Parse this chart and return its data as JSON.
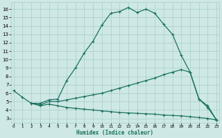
{
  "xlabel": "Humidex (Indice chaleur)",
  "background_color": "#cde8e5",
  "grid_color": "#a8cdc9",
  "line_color": "#1a7060",
  "x_ticks": [
    0,
    1,
    2,
    3,
    4,
    5,
    6,
    7,
    8,
    9,
    10,
    11,
    12,
    13,
    14,
    15,
    16,
    17,
    18,
    19,
    20,
    21,
    22,
    23
  ],
  "y_ticks": [
    3,
    4,
    5,
    6,
    7,
    8,
    9,
    10,
    11,
    12,
    13,
    14,
    15,
    16
  ],
  "xlim": [
    -0.3,
    23.3
  ],
  "ylim": [
    2.5,
    16.8
  ],
  "line1_x": [
    0,
    1,
    2,
    3,
    4,
    5,
    6,
    7,
    8,
    9,
    10,
    11,
    12,
    13,
    14,
    15,
    16,
    17,
    18,
    19,
    20,
    21,
    22,
    23
  ],
  "line1_y": [
    6.3,
    5.5,
    4.8,
    4.8,
    5.2,
    5.3,
    7.5,
    9.0,
    10.8,
    12.2,
    14.1,
    15.5,
    15.7,
    16.2,
    15.6,
    16.0,
    15.5,
    14.2,
    13.0,
    10.5,
    8.5,
    5.3,
    4.3,
    2.8
  ],
  "line2_x": [
    2,
    3,
    4,
    5,
    6,
    7,
    8,
    9,
    10,
    11,
    12,
    13,
    14,
    15,
    16,
    17,
    18,
    19,
    20,
    21,
    22,
    23
  ],
  "line2_y": [
    4.8,
    4.6,
    5.0,
    5.0,
    5.2,
    5.4,
    5.6,
    5.8,
    6.0,
    6.3,
    6.6,
    6.9,
    7.2,
    7.5,
    7.8,
    8.2,
    8.5,
    8.8,
    8.5,
    5.3,
    4.5,
    2.8
  ],
  "line3_x": [
    2,
    3,
    4,
    5,
    6,
    7,
    8,
    9,
    10,
    11,
    12,
    13,
    14,
    15,
    16,
    17,
    18,
    19,
    20,
    21,
    22,
    23
  ],
  "line3_y": [
    4.8,
    4.5,
    4.7,
    4.5,
    4.3,
    4.2,
    4.1,
    4.0,
    3.9,
    3.8,
    3.7,
    3.65,
    3.6,
    3.55,
    3.5,
    3.4,
    3.35,
    3.3,
    3.2,
    3.1,
    3.0,
    2.8
  ]
}
